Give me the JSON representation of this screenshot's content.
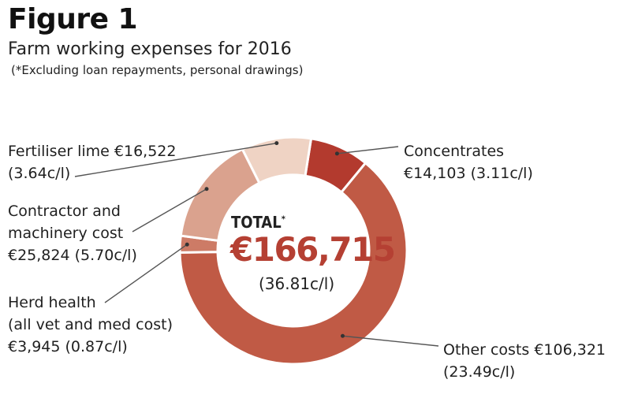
{
  "figure_label": "Figure 1",
  "subtitle": "Farm working expenses for 2016",
  "note": "(*Excluding loan repayments, personal drawings)",
  "total": {
    "label": "TOTAL",
    "marker": "*",
    "value": "€166,715",
    "rate": "(36.81c/l)"
  },
  "chart_data": {
    "type": "pie",
    "style": "donut",
    "title": "Farm working expenses for 2016",
    "slices": [
      {
        "name": "Concentrates",
        "value": 14103,
        "rate": "3.11c/l",
        "color": "#b33a2e",
        "label_lines": [
          "Concentrates",
          "€14,103 (3.11c/l)"
        ]
      },
      {
        "name": "Other costs",
        "value": 106321,
        "rate": "23.49c/l",
        "color": "#c05a45",
        "label_lines": [
          "Other costs €106,321",
          "(23.49c/l)"
        ]
      },
      {
        "name": "Herd health (all vet and med cost)",
        "value": 3945,
        "rate": "0.87c/l",
        "color": "#cd7b66",
        "label_lines": [
          "Herd health",
          "(all vet and med cost)",
          "€3,945 (0.87c/l)"
        ]
      },
      {
        "name": "Contractor and machinery cost",
        "value": 25824,
        "rate": "5.70c/l",
        "color": "#daa28e",
        "label_lines": [
          "Contractor and",
          "machinery cost",
          "€25,824 (5.70c/l)"
        ]
      },
      {
        "name": "Fertiliser lime",
        "value": 16522,
        "rate": "3.64c/l",
        "color": "#efd3c4",
        "label_lines": [
          "Fertiliser lime €16,522",
          "(3.64c/l)"
        ]
      }
    ]
  }
}
